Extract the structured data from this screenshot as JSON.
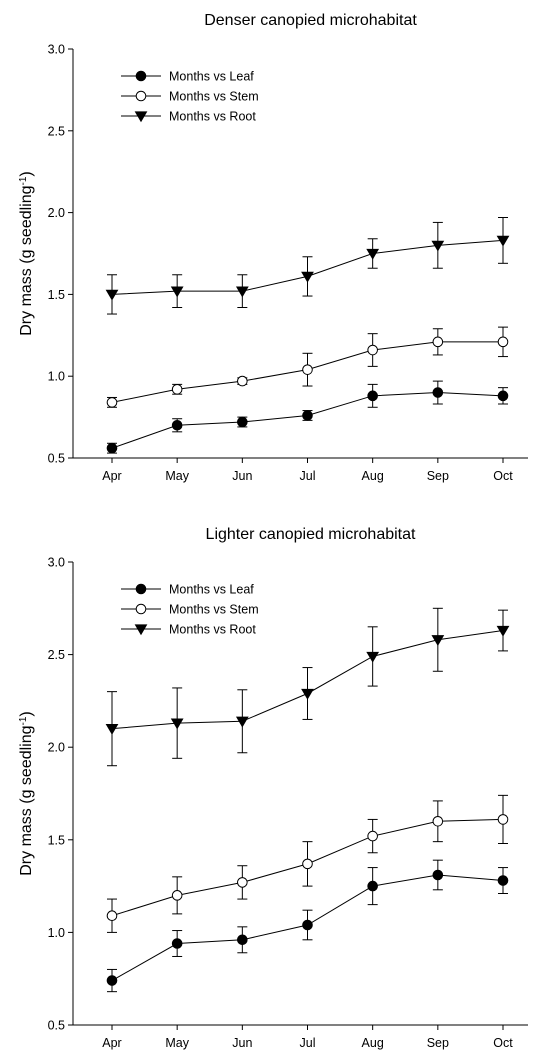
{
  "chart_data": [
    {
      "type": "line",
      "title": "Denser canopied microhabitat",
      "xlabel": "",
      "ylabel": "Dry mass (g seedling",
      "ylabel_sup": "-1",
      "ylabel_close": ")",
      "categories": [
        "Apr",
        "May",
        "Jun",
        "Jul",
        "Aug",
        "Sep",
        "Oct"
      ],
      "ylim": [
        0.5,
        3.0
      ],
      "yticks": [
        "0.5",
        "1.0",
        "1.5",
        "2.0",
        "2.5",
        "3.0"
      ],
      "legend_position": "top-left",
      "series": [
        {
          "name": "Months vs Leaf",
          "marker": "filled-circle",
          "values": [
            0.56,
            0.7,
            0.72,
            0.76,
            0.88,
            0.9,
            0.88
          ],
          "errors": [
            0.03,
            0.04,
            0.03,
            0.03,
            0.07,
            0.07,
            0.05
          ]
        },
        {
          "name": "Months vs Stem",
          "marker": "open-circle",
          "values": [
            0.84,
            0.92,
            0.97,
            1.04,
            1.16,
            1.21,
            1.21
          ],
          "errors": [
            0.03,
            0.03,
            0.02,
            0.1,
            0.1,
            0.08,
            0.09
          ]
        },
        {
          "name": "Months vs Root",
          "marker": "filled-triangle-down",
          "values": [
            1.5,
            1.52,
            1.52,
            1.61,
            1.75,
            1.8,
            1.83
          ],
          "errors": [
            0.12,
            0.1,
            0.1,
            0.12,
            0.09,
            0.14,
            0.14
          ]
        }
      ]
    },
    {
      "type": "line",
      "title": "Lighter canopied microhabitat",
      "xlabel": "",
      "ylabel": "Dry mass (g seedling",
      "ylabel_sup": "-1",
      "ylabel_close": ")",
      "categories": [
        "Apr",
        "May",
        "Jun",
        "Jul",
        "Aug",
        "Sep",
        "Oct"
      ],
      "ylim": [
        0.5,
        3.0
      ],
      "yticks": [
        "0.5",
        "1.0",
        "1.5",
        "2.0",
        "2.5",
        "3.0"
      ],
      "legend_position": "top-left",
      "series": [
        {
          "name": "Months vs Leaf",
          "marker": "filled-circle",
          "values": [
            0.74,
            0.94,
            0.96,
            1.04,
            1.25,
            1.31,
            1.28
          ],
          "errors": [
            0.06,
            0.07,
            0.07,
            0.08,
            0.1,
            0.08,
            0.07
          ]
        },
        {
          "name": "Months vs Stem",
          "marker": "open-circle",
          "values": [
            1.09,
            1.2,
            1.27,
            1.37,
            1.52,
            1.6,
            1.61
          ],
          "errors": [
            0.09,
            0.1,
            0.09,
            0.12,
            0.09,
            0.11,
            0.13
          ]
        },
        {
          "name": "Months vs Root",
          "marker": "filled-triangle-down",
          "values": [
            2.1,
            2.13,
            2.14,
            2.29,
            2.49,
            2.58,
            2.63
          ],
          "errors": [
            0.2,
            0.19,
            0.17,
            0.14,
            0.16,
            0.17,
            0.11
          ]
        }
      ]
    }
  ]
}
